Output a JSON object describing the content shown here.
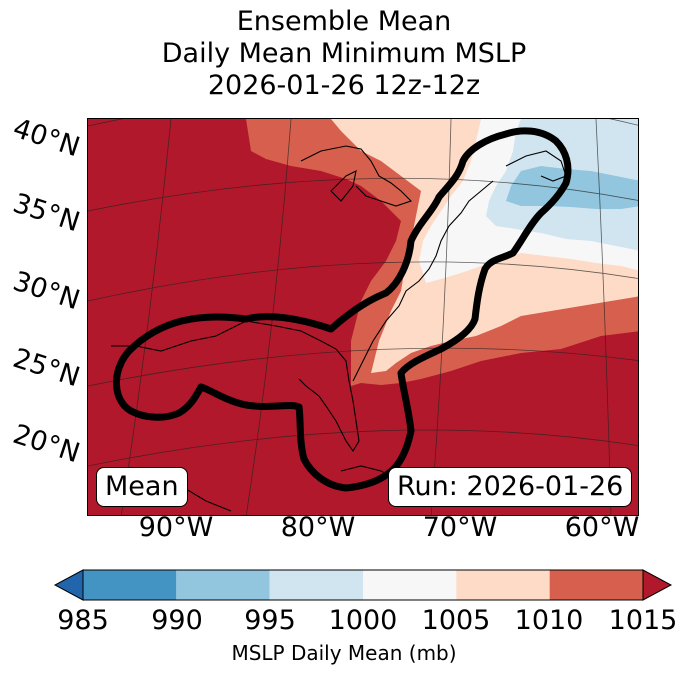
{
  "title": {
    "line1": "Ensemble Mean",
    "line2": "Daily Mean Minimum MSLP",
    "line3": "2026-01-26 12z-12z"
  },
  "map": {
    "lat_labels": [
      "40°N",
      "35°N",
      "30°N",
      "25°N",
      "20°N"
    ],
    "lon_labels": [
      "90°W",
      "80°W",
      "70°W",
      "60°W"
    ],
    "mean_box": "Mean",
    "run_box": "Run: 2026-01-26",
    "contour_color": "#000000"
  },
  "colorbar": {
    "ticks": [
      "985",
      "990",
      "995",
      "1000",
      "1005",
      "1010",
      "1015"
    ],
    "colors": [
      "#2166ac",
      "#4393c3",
      "#92c5de",
      "#d1e5f0",
      "#f7f7f7",
      "#fddbc7",
      "#d6604d",
      "#b2182b"
    ],
    "label": "MSLP Daily Mean (mb)"
  }
}
